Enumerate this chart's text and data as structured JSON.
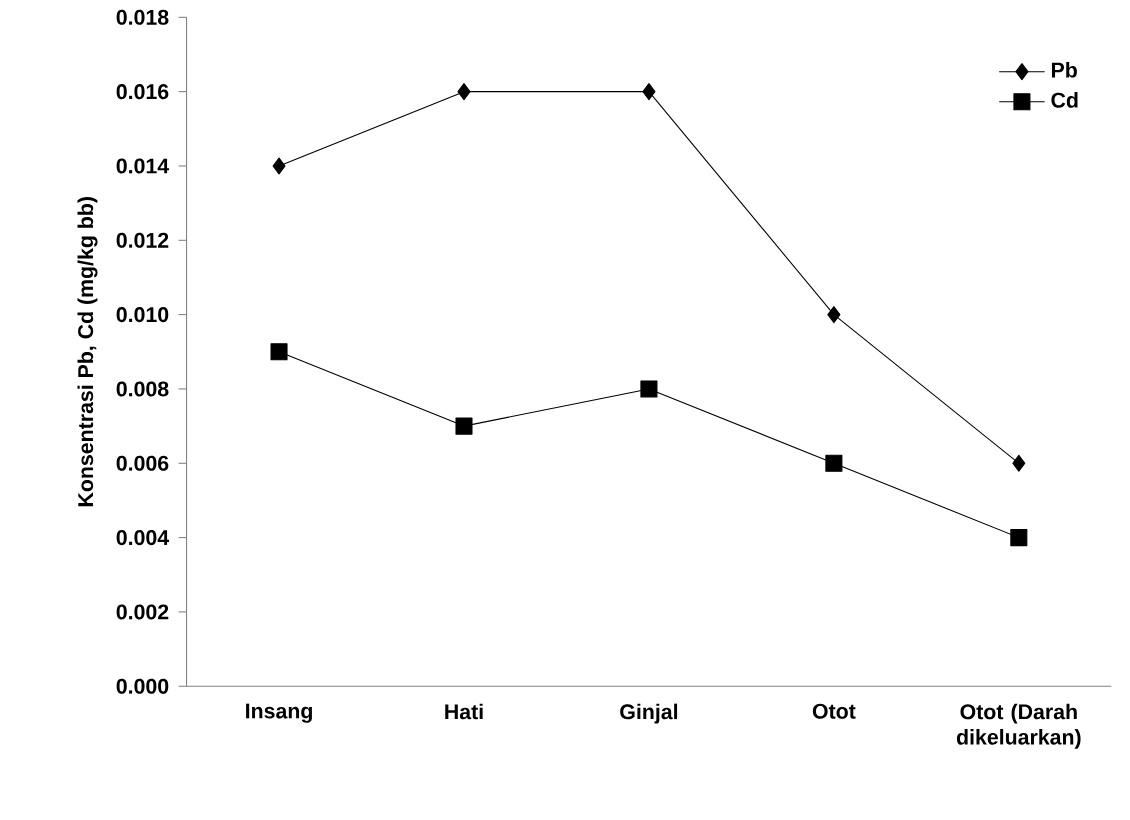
{
  "chart_data": {
    "type": "line",
    "ylabel": "Konsentrasi Pb, Cd (mg/kg bb)",
    "categories": [
      "Insang",
      "Hati",
      "Ginjal",
      "Otot",
      "Otot (Darah dikeluarkan)"
    ],
    "series": [
      {
        "name": "Pb",
        "color": "#000000",
        "marker": "diamond",
        "values": [
          0.014,
          0.016,
          0.016,
          0.01,
          0.006
        ]
      },
      {
        "name": "Cd",
        "color": "#000000",
        "marker": "square",
        "values": [
          0.009,
          0.007,
          0.008,
          0.006,
          0.004
        ]
      }
    ],
    "ylim": [
      0,
      0.018
    ],
    "yticks": [
      {
        "value": 0,
        "label": "0.000"
      },
      {
        "value": 0.002,
        "label": "0.002"
      },
      {
        "value": 0.004,
        "label": "0.004"
      },
      {
        "value": 0.006,
        "label": "0.006"
      },
      {
        "value": 0.008,
        "label": "0.008"
      },
      {
        "value": 0.01,
        "label": "0.010"
      },
      {
        "value": 0.012,
        "label": "0.012"
      },
      {
        "value": 0.014,
        "label": "0.014"
      },
      {
        "value": 0.016,
        "label": "0.016"
      },
      {
        "value": 0.018,
        "label": "0.018"
      }
    ],
    "grid": false,
    "legend": "top right",
    "line_style": "solid"
  }
}
